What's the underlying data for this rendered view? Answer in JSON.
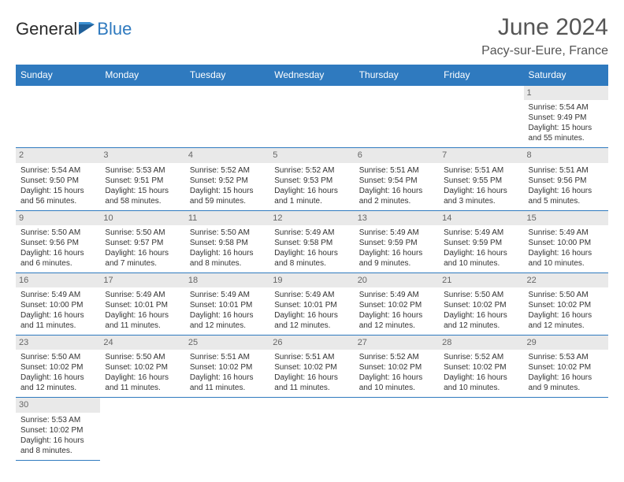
{
  "brand": {
    "part1": "General",
    "part2": "Blue"
  },
  "title": "June 2024",
  "location": "Pacy-sur-Eure, France",
  "colors": {
    "header_bg": "#2f7abf",
    "header_text": "#ffffff",
    "daynum_bg": "#e9e9e9",
    "border": "#2f7abf"
  },
  "day_headers": [
    "Sunday",
    "Monday",
    "Tuesday",
    "Wednesday",
    "Thursday",
    "Friday",
    "Saturday"
  ],
  "weeks": [
    [
      {
        "empty": true
      },
      {
        "empty": true
      },
      {
        "empty": true
      },
      {
        "empty": true
      },
      {
        "empty": true
      },
      {
        "empty": true
      },
      {
        "num": "1",
        "sunrise": "Sunrise: 5:54 AM",
        "sunset": "Sunset: 9:49 PM",
        "day1": "Daylight: 15 hours",
        "day2": "and 55 minutes."
      }
    ],
    [
      {
        "num": "2",
        "sunrise": "Sunrise: 5:54 AM",
        "sunset": "Sunset: 9:50 PM",
        "day1": "Daylight: 15 hours",
        "day2": "and 56 minutes."
      },
      {
        "num": "3",
        "sunrise": "Sunrise: 5:53 AM",
        "sunset": "Sunset: 9:51 PM",
        "day1": "Daylight: 15 hours",
        "day2": "and 58 minutes."
      },
      {
        "num": "4",
        "sunrise": "Sunrise: 5:52 AM",
        "sunset": "Sunset: 9:52 PM",
        "day1": "Daylight: 15 hours",
        "day2": "and 59 minutes."
      },
      {
        "num": "5",
        "sunrise": "Sunrise: 5:52 AM",
        "sunset": "Sunset: 9:53 PM",
        "day1": "Daylight: 16 hours",
        "day2": "and 1 minute."
      },
      {
        "num": "6",
        "sunrise": "Sunrise: 5:51 AM",
        "sunset": "Sunset: 9:54 PM",
        "day1": "Daylight: 16 hours",
        "day2": "and 2 minutes."
      },
      {
        "num": "7",
        "sunrise": "Sunrise: 5:51 AM",
        "sunset": "Sunset: 9:55 PM",
        "day1": "Daylight: 16 hours",
        "day2": "and 3 minutes."
      },
      {
        "num": "8",
        "sunrise": "Sunrise: 5:51 AM",
        "sunset": "Sunset: 9:56 PM",
        "day1": "Daylight: 16 hours",
        "day2": "and 5 minutes."
      }
    ],
    [
      {
        "num": "9",
        "sunrise": "Sunrise: 5:50 AM",
        "sunset": "Sunset: 9:56 PM",
        "day1": "Daylight: 16 hours",
        "day2": "and 6 minutes."
      },
      {
        "num": "10",
        "sunrise": "Sunrise: 5:50 AM",
        "sunset": "Sunset: 9:57 PM",
        "day1": "Daylight: 16 hours",
        "day2": "and 7 minutes."
      },
      {
        "num": "11",
        "sunrise": "Sunrise: 5:50 AM",
        "sunset": "Sunset: 9:58 PM",
        "day1": "Daylight: 16 hours",
        "day2": "and 8 minutes."
      },
      {
        "num": "12",
        "sunrise": "Sunrise: 5:49 AM",
        "sunset": "Sunset: 9:58 PM",
        "day1": "Daylight: 16 hours",
        "day2": "and 8 minutes."
      },
      {
        "num": "13",
        "sunrise": "Sunrise: 5:49 AM",
        "sunset": "Sunset: 9:59 PM",
        "day1": "Daylight: 16 hours",
        "day2": "and 9 minutes."
      },
      {
        "num": "14",
        "sunrise": "Sunrise: 5:49 AM",
        "sunset": "Sunset: 9:59 PM",
        "day1": "Daylight: 16 hours",
        "day2": "and 10 minutes."
      },
      {
        "num": "15",
        "sunrise": "Sunrise: 5:49 AM",
        "sunset": "Sunset: 10:00 PM",
        "day1": "Daylight: 16 hours",
        "day2": "and 10 minutes."
      }
    ],
    [
      {
        "num": "16",
        "sunrise": "Sunrise: 5:49 AM",
        "sunset": "Sunset: 10:00 PM",
        "day1": "Daylight: 16 hours",
        "day2": "and 11 minutes."
      },
      {
        "num": "17",
        "sunrise": "Sunrise: 5:49 AM",
        "sunset": "Sunset: 10:01 PM",
        "day1": "Daylight: 16 hours",
        "day2": "and 11 minutes."
      },
      {
        "num": "18",
        "sunrise": "Sunrise: 5:49 AM",
        "sunset": "Sunset: 10:01 PM",
        "day1": "Daylight: 16 hours",
        "day2": "and 12 minutes."
      },
      {
        "num": "19",
        "sunrise": "Sunrise: 5:49 AM",
        "sunset": "Sunset: 10:01 PM",
        "day1": "Daylight: 16 hours",
        "day2": "and 12 minutes."
      },
      {
        "num": "20",
        "sunrise": "Sunrise: 5:49 AM",
        "sunset": "Sunset: 10:02 PM",
        "day1": "Daylight: 16 hours",
        "day2": "and 12 minutes."
      },
      {
        "num": "21",
        "sunrise": "Sunrise: 5:50 AM",
        "sunset": "Sunset: 10:02 PM",
        "day1": "Daylight: 16 hours",
        "day2": "and 12 minutes."
      },
      {
        "num": "22",
        "sunrise": "Sunrise: 5:50 AM",
        "sunset": "Sunset: 10:02 PM",
        "day1": "Daylight: 16 hours",
        "day2": "and 12 minutes."
      }
    ],
    [
      {
        "num": "23",
        "sunrise": "Sunrise: 5:50 AM",
        "sunset": "Sunset: 10:02 PM",
        "day1": "Daylight: 16 hours",
        "day2": "and 12 minutes."
      },
      {
        "num": "24",
        "sunrise": "Sunrise: 5:50 AM",
        "sunset": "Sunset: 10:02 PM",
        "day1": "Daylight: 16 hours",
        "day2": "and 11 minutes."
      },
      {
        "num": "25",
        "sunrise": "Sunrise: 5:51 AM",
        "sunset": "Sunset: 10:02 PM",
        "day1": "Daylight: 16 hours",
        "day2": "and 11 minutes."
      },
      {
        "num": "26",
        "sunrise": "Sunrise: 5:51 AM",
        "sunset": "Sunset: 10:02 PM",
        "day1": "Daylight: 16 hours",
        "day2": "and 11 minutes."
      },
      {
        "num": "27",
        "sunrise": "Sunrise: 5:52 AM",
        "sunset": "Sunset: 10:02 PM",
        "day1": "Daylight: 16 hours",
        "day2": "and 10 minutes."
      },
      {
        "num": "28",
        "sunrise": "Sunrise: 5:52 AM",
        "sunset": "Sunset: 10:02 PM",
        "day1": "Daylight: 16 hours",
        "day2": "and 10 minutes."
      },
      {
        "num": "29",
        "sunrise": "Sunrise: 5:53 AM",
        "sunset": "Sunset: 10:02 PM",
        "day1": "Daylight: 16 hours",
        "day2": "and 9 minutes."
      }
    ],
    [
      {
        "num": "30",
        "sunrise": "Sunrise: 5:53 AM",
        "sunset": "Sunset: 10:02 PM",
        "day1": "Daylight: 16 hours",
        "day2": "and 8 minutes."
      },
      {
        "trailing": true
      },
      {
        "trailing": true
      },
      {
        "trailing": true
      },
      {
        "trailing": true
      },
      {
        "trailing": true
      },
      {
        "trailing": true
      }
    ]
  ]
}
